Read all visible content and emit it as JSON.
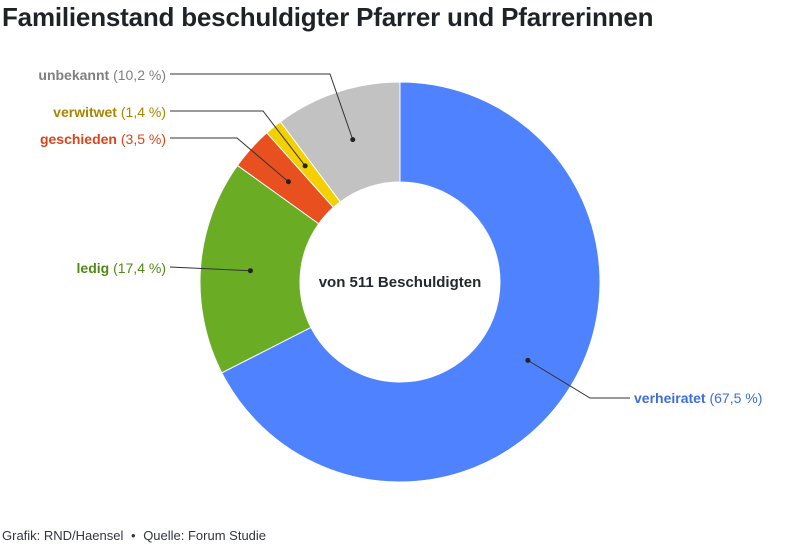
{
  "title": "Familienstand beschuldigter Pfarrer und Pfarrerinnen",
  "center_label": "von 511 Beschuldigten",
  "footer": {
    "credit": "Grafik: RND/Haensel",
    "separator": "•",
    "source": "Quelle: Forum Studie"
  },
  "chart_data": {
    "type": "pie",
    "donut": true,
    "title": "Familienstand beschuldigter Pfarrer und Pfarrerinnen",
    "center_text": "von 511 Beschuldigten",
    "slices": [
      {
        "name": "verheiratet",
        "value": 67.5,
        "label": "(67,5 %)",
        "color": "#4f82ff"
      },
      {
        "name": "ledig",
        "value": 17.4,
        "label": "(17,4 %)",
        "color": "#6aac24"
      },
      {
        "name": "geschieden",
        "value": 3.5,
        "label": "(3,5 %)",
        "color": "#e9501f"
      },
      {
        "name": "verwitwet",
        "value": 1.4,
        "label": "(1,4 %)",
        "color": "#f5d000"
      },
      {
        "name": "unbekannt",
        "value": 10.2,
        "label": "(10,2 %)",
        "color": "#c2c2c2"
      }
    ],
    "label_colors": {
      "verheiratet": "#3d6fd9",
      "ledig": "#4f8a17",
      "geschieden": "#d6461a",
      "verwitwet": "#a88600",
      "unbekannt": "#7f7f7f"
    }
  }
}
